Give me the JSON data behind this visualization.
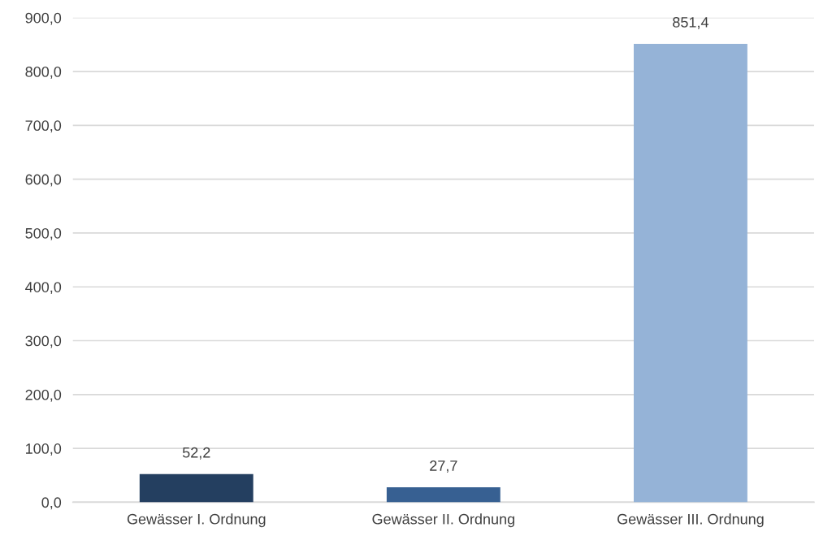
{
  "chart_data": {
    "type": "bar",
    "categories": [
      "Gewässer I. Ordnung",
      "Gewässer II. Ordnung",
      "Gewässer III. Ordnung"
    ],
    "values": [
      52.2,
      27.7,
      851.4
    ],
    "colors": [
      "#243f60",
      "#376092",
      "#95b3d7"
    ],
    "value_labels": [
      "52,2",
      "27,7",
      "851,4"
    ],
    "ylim": [
      0,
      900
    ],
    "yticks": [
      {
        "value": 0,
        "label": "0,0"
      },
      {
        "value": 100,
        "label": "100,0"
      },
      {
        "value": 200,
        "label": "200,0"
      },
      {
        "value": 300,
        "label": "300,0"
      },
      {
        "value": 400,
        "label": "400,0"
      },
      {
        "value": 500,
        "label": "500,0"
      },
      {
        "value": 600,
        "label": "600,0"
      },
      {
        "value": 700,
        "label": "700,0"
      },
      {
        "value": 800,
        "label": "800,0"
      },
      {
        "value": 900,
        "label": "900,0"
      }
    ],
    "grid": "y"
  }
}
